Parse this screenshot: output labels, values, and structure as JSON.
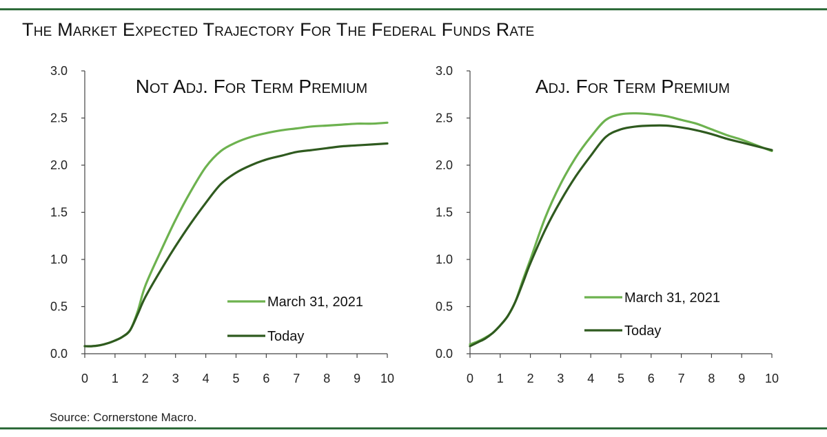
{
  "header": {
    "title": "The Market Expected Trajectory For The Federal Funds Rate"
  },
  "footer": {
    "source": "Source: Cornerstone Macro."
  },
  "colors": {
    "rule": "#2e6b3a",
    "march": "#6db24f",
    "today": "#2f5a1f",
    "axis": "#444444"
  },
  "chart_data": [
    {
      "type": "line",
      "title": "Not Adj. For Term Premium",
      "xlim": [
        0,
        10
      ],
      "ylim": [
        0,
        3
      ],
      "x_ticks": [
        "0",
        "1",
        "2",
        "3",
        "4",
        "5",
        "6",
        "7",
        "8",
        "9",
        "10"
      ],
      "y_ticks": [
        "0.0",
        "0.5",
        "1.0",
        "1.5",
        "2.0",
        "2.5",
        "3.0"
      ],
      "legend_position": "lower-right",
      "series": [
        {
          "name": "March 31, 2021",
          "color": "#6db24f",
          "x": [
            0,
            0.25,
            0.5,
            0.75,
            1,
            1.25,
            1.5,
            1.75,
            2,
            2.5,
            3,
            3.5,
            4,
            4.5,
            5,
            5.5,
            6,
            6.5,
            7,
            7.5,
            8,
            8.5,
            9,
            9.5,
            10
          ],
          "y": [
            0.08,
            0.08,
            0.09,
            0.11,
            0.14,
            0.18,
            0.25,
            0.45,
            0.72,
            1.08,
            1.42,
            1.72,
            1.98,
            2.15,
            2.24,
            2.3,
            2.34,
            2.37,
            2.39,
            2.41,
            2.42,
            2.43,
            2.44,
            2.44,
            2.45
          ]
        },
        {
          "name": "Today",
          "color": "#2f5a1f",
          "x": [
            0,
            0.25,
            0.5,
            0.75,
            1,
            1.25,
            1.5,
            1.75,
            2,
            2.5,
            3,
            3.5,
            4,
            4.5,
            5,
            5.5,
            6,
            6.5,
            7,
            7.5,
            8,
            8.5,
            9,
            9.5,
            10
          ],
          "y": [
            0.08,
            0.08,
            0.09,
            0.11,
            0.14,
            0.18,
            0.25,
            0.42,
            0.6,
            0.88,
            1.14,
            1.38,
            1.6,
            1.8,
            1.92,
            2.0,
            2.06,
            2.1,
            2.14,
            2.16,
            2.18,
            2.2,
            2.21,
            2.22,
            2.23
          ]
        }
      ]
    },
    {
      "type": "line",
      "title": "Adj. For Term Premium",
      "xlim": [
        0,
        10
      ],
      "ylim": [
        0,
        3
      ],
      "x_ticks": [
        "0",
        "1",
        "2",
        "3",
        "4",
        "5",
        "6",
        "7",
        "8",
        "9",
        "10"
      ],
      "y_ticks": [
        "0.0",
        "0.5",
        "1.0",
        "1.5",
        "2.0",
        "2.5",
        "3.0"
      ],
      "legend_position": "lower-right",
      "series": [
        {
          "name": "March 31, 2021",
          "color": "#6db24f",
          "x": [
            0,
            0.25,
            0.5,
            0.75,
            1,
            1.25,
            1.5,
            1.75,
            2,
            2.5,
            3,
            3.5,
            4,
            4.5,
            5,
            5.5,
            6,
            6.5,
            7,
            7.5,
            8,
            8.5,
            9,
            9.5,
            10
          ],
          "y": [
            0.1,
            0.13,
            0.17,
            0.22,
            0.3,
            0.4,
            0.55,
            0.78,
            1.0,
            1.45,
            1.8,
            2.08,
            2.3,
            2.48,
            2.54,
            2.55,
            2.54,
            2.52,
            2.48,
            2.44,
            2.38,
            2.32,
            2.27,
            2.21,
            2.15
          ]
        },
        {
          "name": "Today",
          "color": "#2f5a1f",
          "x": [
            0,
            0.25,
            0.5,
            0.75,
            1,
            1.25,
            1.5,
            1.75,
            2,
            2.5,
            3,
            3.5,
            4,
            4.5,
            5,
            5.5,
            6,
            6.5,
            7,
            7.5,
            8,
            8.5,
            9,
            9.5,
            10
          ],
          "y": [
            0.08,
            0.12,
            0.16,
            0.22,
            0.3,
            0.4,
            0.55,
            0.75,
            0.96,
            1.32,
            1.62,
            1.88,
            2.1,
            2.3,
            2.38,
            2.41,
            2.42,
            2.42,
            2.4,
            2.37,
            2.33,
            2.28,
            2.24,
            2.2,
            2.16
          ]
        }
      ]
    }
  ]
}
